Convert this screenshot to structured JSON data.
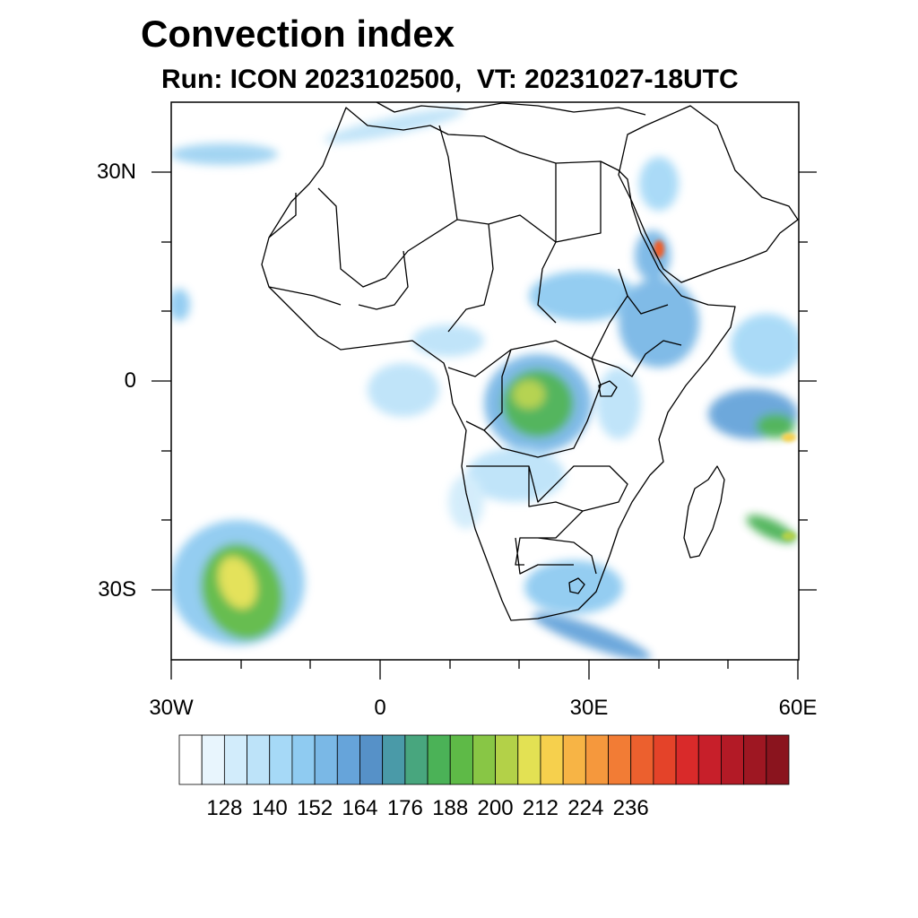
{
  "title": "Convection index",
  "subtitle": "Run: ICON 2023102500,  VT: 20231027-18UTC",
  "map": {
    "region": "Africa",
    "lon_range": [
      -30,
      60
    ],
    "lat_range": [
      -40,
      40
    ],
    "lat_ticks": [
      {
        "value": 30,
        "label": "30N"
      },
      {
        "value": 0,
        "label": "0"
      },
      {
        "value": -30,
        "label": "30S"
      }
    ],
    "lon_ticks": [
      {
        "value": -30,
        "label": "30W"
      },
      {
        "value": 0,
        "label": "0"
      },
      {
        "value": 30,
        "label": "30E"
      },
      {
        "value": 60,
        "label": "60E"
      }
    ],
    "coastline_color": "#000000",
    "ocean_color": "#ffffff"
  },
  "colorbar": {
    "levels": [
      128,
      140,
      152,
      164,
      176,
      188,
      200,
      212,
      224,
      236
    ],
    "colors": [
      "#ffffff",
      "#e8f5fd",
      "#d2ecfb",
      "#bde3f9",
      "#a6d9f7",
      "#8fcbf1",
      "#7ab8e6",
      "#66a4da",
      "#5691c8",
      "#4a9aa8",
      "#48a67e",
      "#4bb257",
      "#5eba47",
      "#88c645",
      "#b3d148",
      "#e3e153",
      "#f6d04d",
      "#f7b445",
      "#f5983d",
      "#f27c35",
      "#ec602e",
      "#e44329",
      "#d92a2a",
      "#c71f2a",
      "#b31a26",
      "#9e1722",
      "#8a141e"
    ]
  }
}
